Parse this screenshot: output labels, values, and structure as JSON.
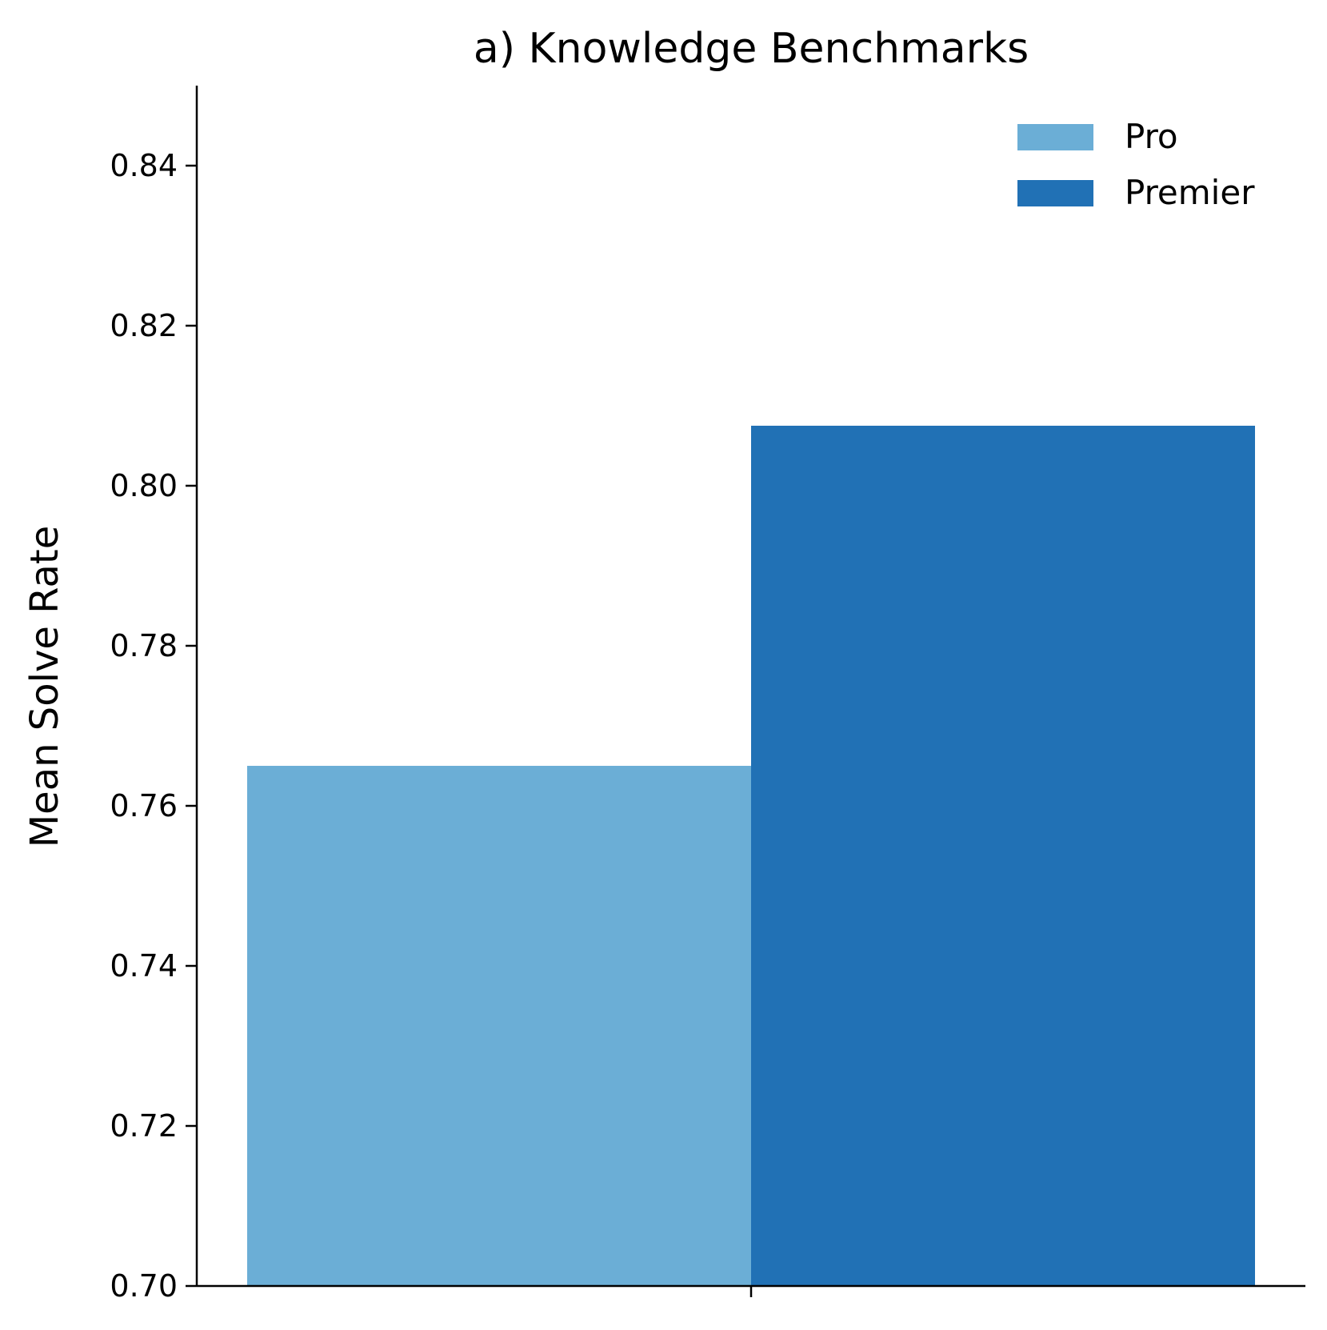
{
  "chart_data": {
    "type": "bar",
    "title": "a) Knowledge Benchmarks",
    "xlabel": "",
    "ylabel": "Mean Solve Rate",
    "categories": [
      ""
    ],
    "series": [
      {
        "name": "Pro",
        "values": [
          0.765
        ],
        "color": "#6baed6"
      },
      {
        "name": "Premier",
        "values": [
          0.8075
        ],
        "color": "#2171b5"
      }
    ],
    "ylim": [
      0.7,
      0.85
    ],
    "yticks": [
      0.7,
      0.72,
      0.74,
      0.76,
      0.78,
      0.8,
      0.82,
      0.84
    ],
    "ytick_labels": [
      "0.70",
      "0.72",
      "0.74",
      "0.76",
      "0.78",
      "0.80",
      "0.82",
      "0.84"
    ],
    "grid": false,
    "legend_position": "top-right"
  }
}
